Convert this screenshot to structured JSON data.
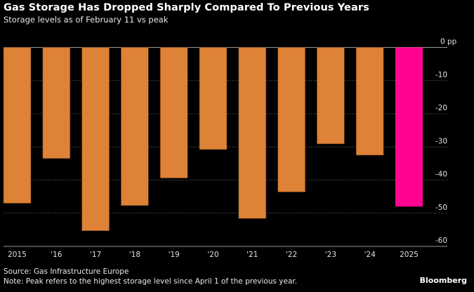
{
  "header": {
    "title": "Gas Storage Has Dropped Sharply Compared To Previous Years",
    "subtitle": "Storage levels as of February 11 vs peak"
  },
  "footer": {
    "source": "Source: Gas Infrastructure Europe",
    "note": "Note: Peak refers to the highest storage level since April 1 of the previous year.",
    "brand": "Bloomberg"
  },
  "colors": {
    "default_bar": "#DD8236",
    "highlight_bar": "#FF0490",
    "background": "#000000",
    "gridline": "#555555"
  },
  "chart_data": {
    "type": "bar",
    "title": "Gas Storage Has Dropped Sharply Compared To Previous Years",
    "subtitle": "Storage levels as of February 11 vs peak",
    "xlabel": "",
    "ylabel": "",
    "y_unit": "pp",
    "categories": [
      "2015",
      "'16",
      "'17",
      "'18",
      "'19",
      "'20",
      "'21",
      "'22",
      "'23",
      "'24",
      "2025"
    ],
    "values": [
      -47.0,
      -33.5,
      -55.3,
      -47.7,
      -39.4,
      -30.8,
      -51.6,
      -43.6,
      -29.1,
      -32.5,
      -48.0
    ],
    "highlight": [
      "2025"
    ],
    "ylim": [
      -60,
      0
    ],
    "yticks": [
      0,
      -10,
      -20,
      -30,
      -40,
      -50,
      -60
    ],
    "ytick_labels": [
      "0 pp",
      "-10",
      "-20",
      "-30",
      "-40",
      "-50",
      "-60"
    ],
    "y_axis_position": "right",
    "grid": true,
    "legend": "none"
  }
}
